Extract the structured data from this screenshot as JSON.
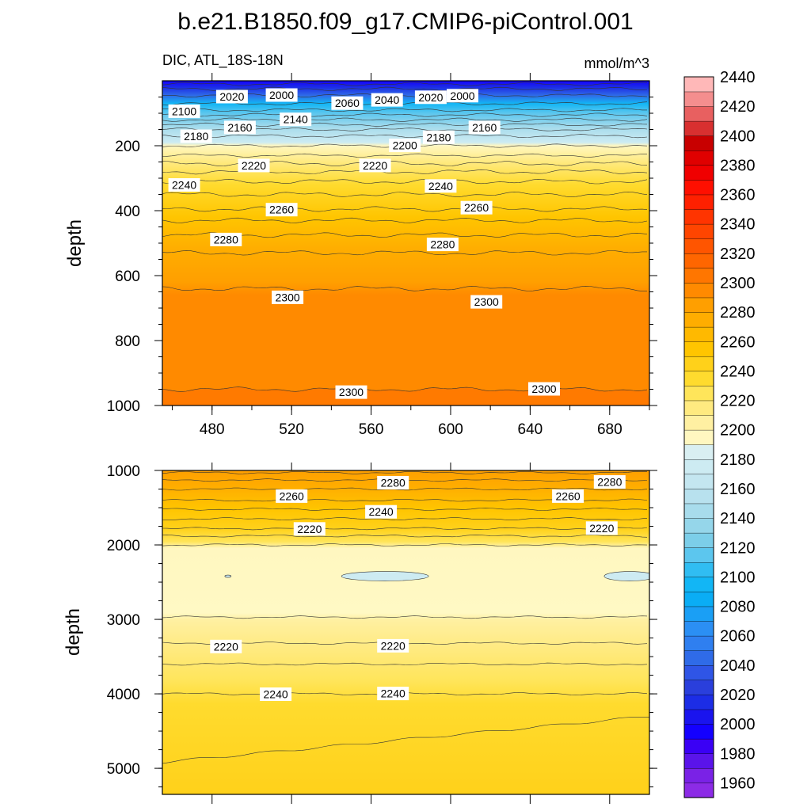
{
  "figure": {
    "title": "b.e21.B1850.f09_g17.CMIP6-piControl.001",
    "left_string": "DIC, ATL_18S-18N",
    "right_string": "mmol/m^3"
  },
  "colorbar": {
    "levels": [
      1960,
      1970,
      1980,
      1990,
      2000,
      2010,
      2020,
      2030,
      2040,
      2050,
      2060,
      2070,
      2080,
      2090,
      2100,
      2110,
      2120,
      2130,
      2140,
      2150,
      2160,
      2170,
      2180,
      2190,
      2200,
      2210,
      2220,
      2230,
      2240,
      2250,
      2260,
      2270,
      2280,
      2290,
      2300,
      2310,
      2320,
      2330,
      2340,
      2350,
      2360,
      2370,
      2380,
      2390,
      2400,
      2410,
      2420,
      2430,
      2440
    ],
    "labels": [
      "1960",
      "1980",
      "2000",
      "2020",
      "2040",
      "2060",
      "2080",
      "2100",
      "2120",
      "2140",
      "2160",
      "2180",
      "2200",
      "2220",
      "2240",
      "2260",
      "2280",
      "2300",
      "2320",
      "2340",
      "2360",
      "2380",
      "2400",
      "2420",
      "2440"
    ],
    "colors": [
      "#8c2be6",
      "#7a22e6",
      "#5a14ea",
      "#3a00f5",
      "#1400ff",
      "#1a14ee",
      "#1c2de6",
      "#2a3fdc",
      "#2f55e6",
      "#2f6be8",
      "#2f7ff0",
      "#2b8ff4",
      "#1a9ff5",
      "#0aadf5",
      "#12b6f5",
      "#30bdf2",
      "#5cc6ee",
      "#7ccee9",
      "#95d6ea",
      "#a8dcec",
      "#b8e1ee",
      "#c4e6f0",
      "#cdebf2",
      "#d9eff2",
      "#fff7c0",
      "#fff0a2",
      "#ffea80",
      "#ffe55a",
      "#ffdb2e",
      "#ffd11a",
      "#ffc500",
      "#ffb900",
      "#ffad00",
      "#ff9f00",
      "#ff8a00",
      "#ff7600",
      "#ff6600",
      "#ff5500",
      "#ff4500",
      "#ff3400",
      "#ff2000",
      "#ff0f00",
      "#f00000",
      "#e00000",
      "#c80000",
      "#d83030",
      "#e86060",
      "#f48e8e",
      "#ffb8b8"
    ]
  },
  "chart_data": [
    {
      "type": "contour",
      "panel": "upper",
      "variable": "DIC",
      "units": "mmol/m^3",
      "xlabel": "",
      "ylabel": "depth",
      "xlim": [
        455,
        700
      ],
      "ylim": [
        1000,
        0
      ],
      "xticks": [
        "480",
        "520",
        "560",
        "600",
        "640",
        "680"
      ],
      "yticks": [
        "200",
        "400",
        "600",
        "800",
        "1000"
      ],
      "isolines": [
        {
          "value": 2000,
          "depth": 10
        },
        {
          "value": 2020,
          "depth": 25
        },
        {
          "value": 2040,
          "depth": 45
        },
        {
          "value": 2060,
          "depth": 70
        },
        {
          "value": 2080,
          "depth": 90
        },
        {
          "value": 2100,
          "depth": 105
        },
        {
          "value": 2120,
          "depth": 120
        },
        {
          "value": 2140,
          "depth": 135
        },
        {
          "value": 2160,
          "depth": 150
        },
        {
          "value": 2180,
          "depth": 170
        },
        {
          "value": 2200,
          "depth": 200
        },
        {
          "value": 2210,
          "depth": 230
        },
        {
          "value": 2220,
          "depth": 255
        },
        {
          "value": 2230,
          "depth": 280
        },
        {
          "value": 2240,
          "depth": 310
        },
        {
          "value": 2250,
          "depth": 350
        },
        {
          "value": 2260,
          "depth": 395
        },
        {
          "value": 2270,
          "depth": 430
        },
        {
          "value": 2280,
          "depth": 475
        },
        {
          "value": 2290,
          "depth": 530
        },
        {
          "value": 2300,
          "depth": 640
        }
      ],
      "deep_isoline": {
        "value": 2300,
        "depth": 950
      },
      "contour_labels": [
        {
          "text": "2020",
          "x": 490,
          "depth": 50
        },
        {
          "text": "2000",
          "x": 515,
          "depth": 45
        },
        {
          "text": "2060",
          "x": 548,
          "depth": 70
        },
        {
          "text": "2040",
          "x": 568,
          "depth": 60
        },
        {
          "text": "2020",
          "x": 590,
          "depth": 52
        },
        {
          "text": "2000",
          "x": 606,
          "depth": 47
        },
        {
          "text": "2100",
          "x": 466,
          "depth": 95
        },
        {
          "text": "2160",
          "x": 494,
          "depth": 145
        },
        {
          "text": "2140",
          "x": 522,
          "depth": 120
        },
        {
          "text": "2180",
          "x": 472,
          "depth": 172
        },
        {
          "text": "2180",
          "x": 594,
          "depth": 175
        },
        {
          "text": "2160",
          "x": 617,
          "depth": 145
        },
        {
          "text": "2200",
          "x": 577,
          "depth": 200
        },
        {
          "text": "2220",
          "x": 501,
          "depth": 262
        },
        {
          "text": "2220",
          "x": 562,
          "depth": 262
        },
        {
          "text": "2240",
          "x": 466,
          "depth": 322
        },
        {
          "text": "2240",
          "x": 595,
          "depth": 325
        },
        {
          "text": "2260",
          "x": 515,
          "depth": 398
        },
        {
          "text": "2260",
          "x": 613,
          "depth": 392
        },
        {
          "text": "2280",
          "x": 487,
          "depth": 490
        },
        {
          "text": "2280",
          "x": 596,
          "depth": 505
        },
        {
          "text": "2300",
          "x": 518,
          "depth": 668
        },
        {
          "text": "2300",
          "x": 618,
          "depth": 682
        },
        {
          "text": "2300",
          "x": 550,
          "depth": 960
        },
        {
          "text": "2300",
          "x": 647,
          "depth": 950
        }
      ]
    },
    {
      "type": "contour",
      "panel": "lower",
      "variable": "DIC",
      "units": "mmol/m^3",
      "xlabel": "",
      "ylabel": "depth",
      "xlim": [
        455,
        700
      ],
      "ylim": [
        5350,
        1000
      ],
      "yticks": [
        "1000",
        "2000",
        "3000",
        "4000",
        "5000"
      ],
      "isolines": [
        {
          "value": 2300,
          "depth": 1030
        },
        {
          "value": 2290,
          "depth": 1130
        },
        {
          "value": 2280,
          "depth": 1250
        },
        {
          "value": 2270,
          "depth": 1400
        },
        {
          "value": 2260,
          "depth": 1520
        },
        {
          "value": 2250,
          "depth": 1650
        },
        {
          "value": 2240,
          "depth": 1780
        },
        {
          "value": 2230,
          "depth": 1880
        },
        {
          "value": 2220,
          "depth": 2000
        },
        {
          "value": 2210,
          "depth": 2970
        },
        {
          "value": 2220,
          "depth": 3320
        },
        {
          "value": 2230,
          "depth": 3600
        },
        {
          "value": 2240,
          "depth": 4000
        },
        {
          "value": 2250,
          "depth": 4600
        }
      ],
      "contour_labels": [
        {
          "text": "2280",
          "x": 571,
          "depth": 1170
        },
        {
          "text": "2280",
          "x": 680,
          "depth": 1160
        },
        {
          "text": "2260",
          "x": 520,
          "depth": 1350
        },
        {
          "text": "2260",
          "x": 659,
          "depth": 1350
        },
        {
          "text": "2240",
          "x": 565,
          "depth": 1560
        },
        {
          "text": "2220",
          "x": 529,
          "depth": 1790
        },
        {
          "text": "2220",
          "x": 676,
          "depth": 1780
        },
        {
          "text": "2220",
          "x": 487,
          "depth": 3370
        },
        {
          "text": "2220",
          "x": 571,
          "depth": 3360
        },
        {
          "text": "2240",
          "x": 512,
          "depth": 4010
        },
        {
          "text": "2240",
          "x": 571,
          "depth": 4000
        }
      ],
      "patches_below_2200": [
        {
          "x_center": 567,
          "depth": 2420
        },
        {
          "x_center": 690,
          "depth": 2420
        },
        {
          "x_center": 488,
          "depth": 2420
        }
      ]
    }
  ]
}
